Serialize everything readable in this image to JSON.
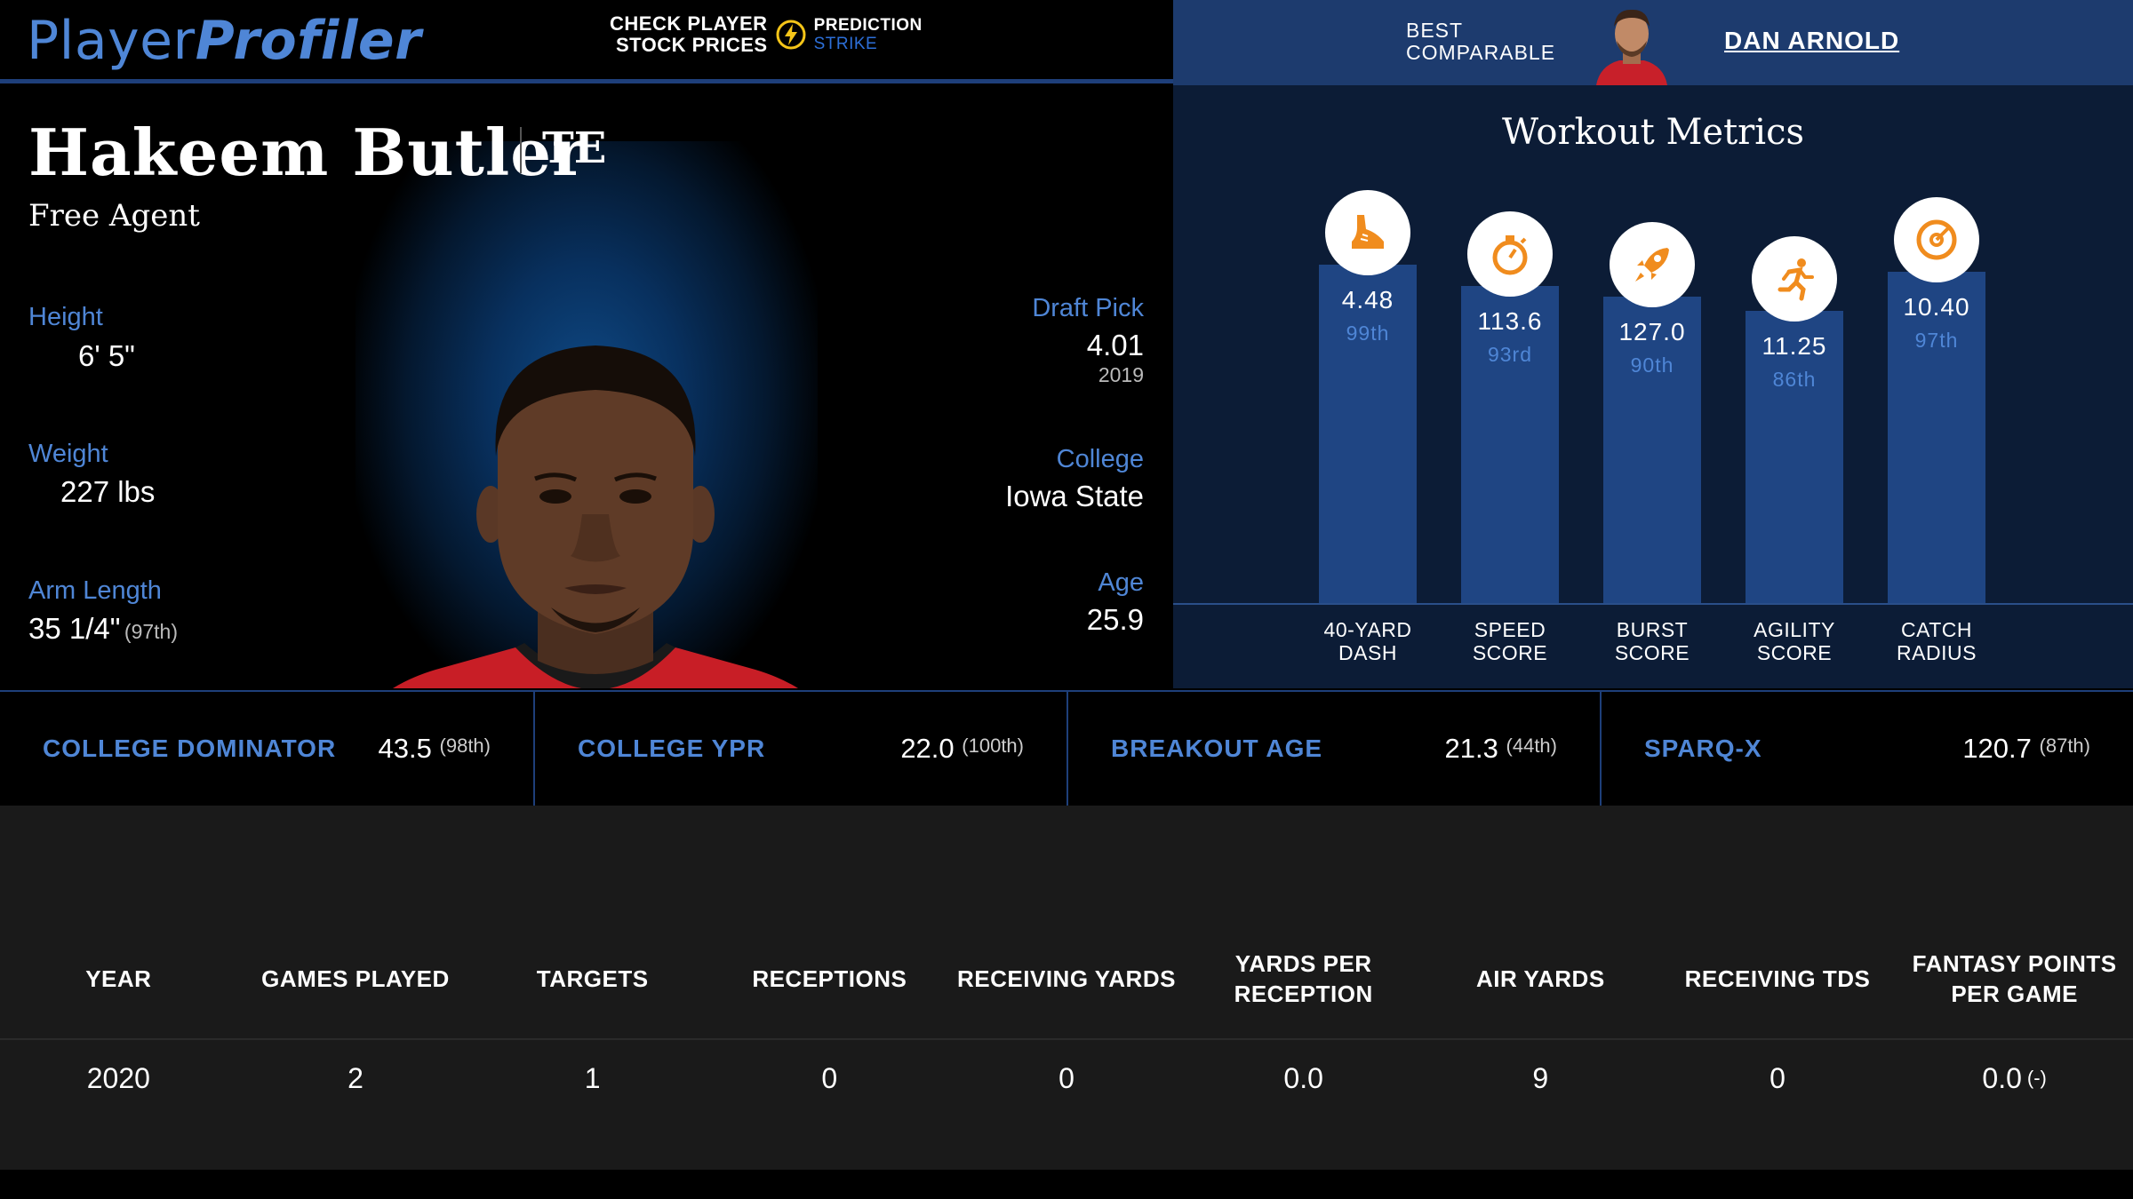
{
  "header": {
    "logo_part1": "Player",
    "logo_part2": "Profiler",
    "promo_line1": "CHECK PLAYER",
    "promo_line2": "STOCK PRICES",
    "promo_brand1": "PREDICTION",
    "promo_brand2": "STRIKE",
    "comparable_label_line1": "BEST",
    "comparable_label_line2": "COMPARABLE",
    "comparable_name": "DAN ARNOLD"
  },
  "player": {
    "name": "Hakeem Butler",
    "position": "TE",
    "team": "Free Agent",
    "height_label": "Height",
    "height": "6' 5\"",
    "weight_label": "Weight",
    "weight": "227 lbs",
    "arm_label": "Arm Length",
    "arm": "35 1/4\"",
    "arm_pct": "(97th)",
    "draft_label": "Draft Pick",
    "draft_pick": "4.01",
    "draft_year": "2019",
    "college_label": "College",
    "college": "Iowa State",
    "age_label": "Age",
    "age": "25.9"
  },
  "workout": {
    "title": "Workout Metrics",
    "metrics": [
      {
        "value": "4.48",
        "percentile": "99th",
        "label1": "40-YARD",
        "label2": "DASH",
        "icon": "shoe-icon",
        "pct_num": 99
      },
      {
        "value": "113.6",
        "percentile": "93rd",
        "label1": "SPEED",
        "label2": "SCORE",
        "icon": "stopwatch-icon",
        "pct_num": 93
      },
      {
        "value": "127.0",
        "percentile": "90th",
        "label1": "BURST",
        "label2": "SCORE",
        "icon": "rocket-icon",
        "pct_num": 90
      },
      {
        "value": "11.25",
        "percentile": "86th",
        "label1": "AGILITY",
        "label2": "SCORE",
        "icon": "runner-icon",
        "pct_num": 86
      },
      {
        "value": "10.40",
        "percentile": "97th",
        "label1": "CATCH",
        "label2": "RADIUS",
        "icon": "target-icon",
        "pct_num": 97
      }
    ],
    "icon_color": "#f08c1e",
    "bar_color": "#1f4583"
  },
  "advanced": [
    {
      "label": "COLLEGE DOMINATOR",
      "value": "43.5",
      "pct": "(98th)"
    },
    {
      "label": "COLLEGE YPR",
      "value": "22.0",
      "pct": "(100th)"
    },
    {
      "label": "BREAKOUT AGE",
      "value": "21.3",
      "pct": "(44th)"
    },
    {
      "label": "SPARQ-X",
      "value": "120.7",
      "pct": "(87th)"
    }
  ],
  "stats_table": {
    "headers": [
      "YEAR",
      "GAMES PLAYED",
      "TARGETS",
      "RECEPTIONS",
      "RECEIVING YARDS",
      "YARDS PER RECEPTION",
      "AIR YARDS",
      "RECEIVING TDS",
      "FANTASY POINTS PER GAME"
    ],
    "rows": [
      [
        "2020",
        "2",
        "1",
        "0",
        "0",
        "0.0",
        "9",
        "0",
        "0.0"
      ]
    ],
    "fp_suffix": "(-)"
  },
  "colors": {
    "accent_blue": "#4f86d6",
    "header_navy": "#1d3b6e",
    "panel_navy": "#0c1c36"
  }
}
